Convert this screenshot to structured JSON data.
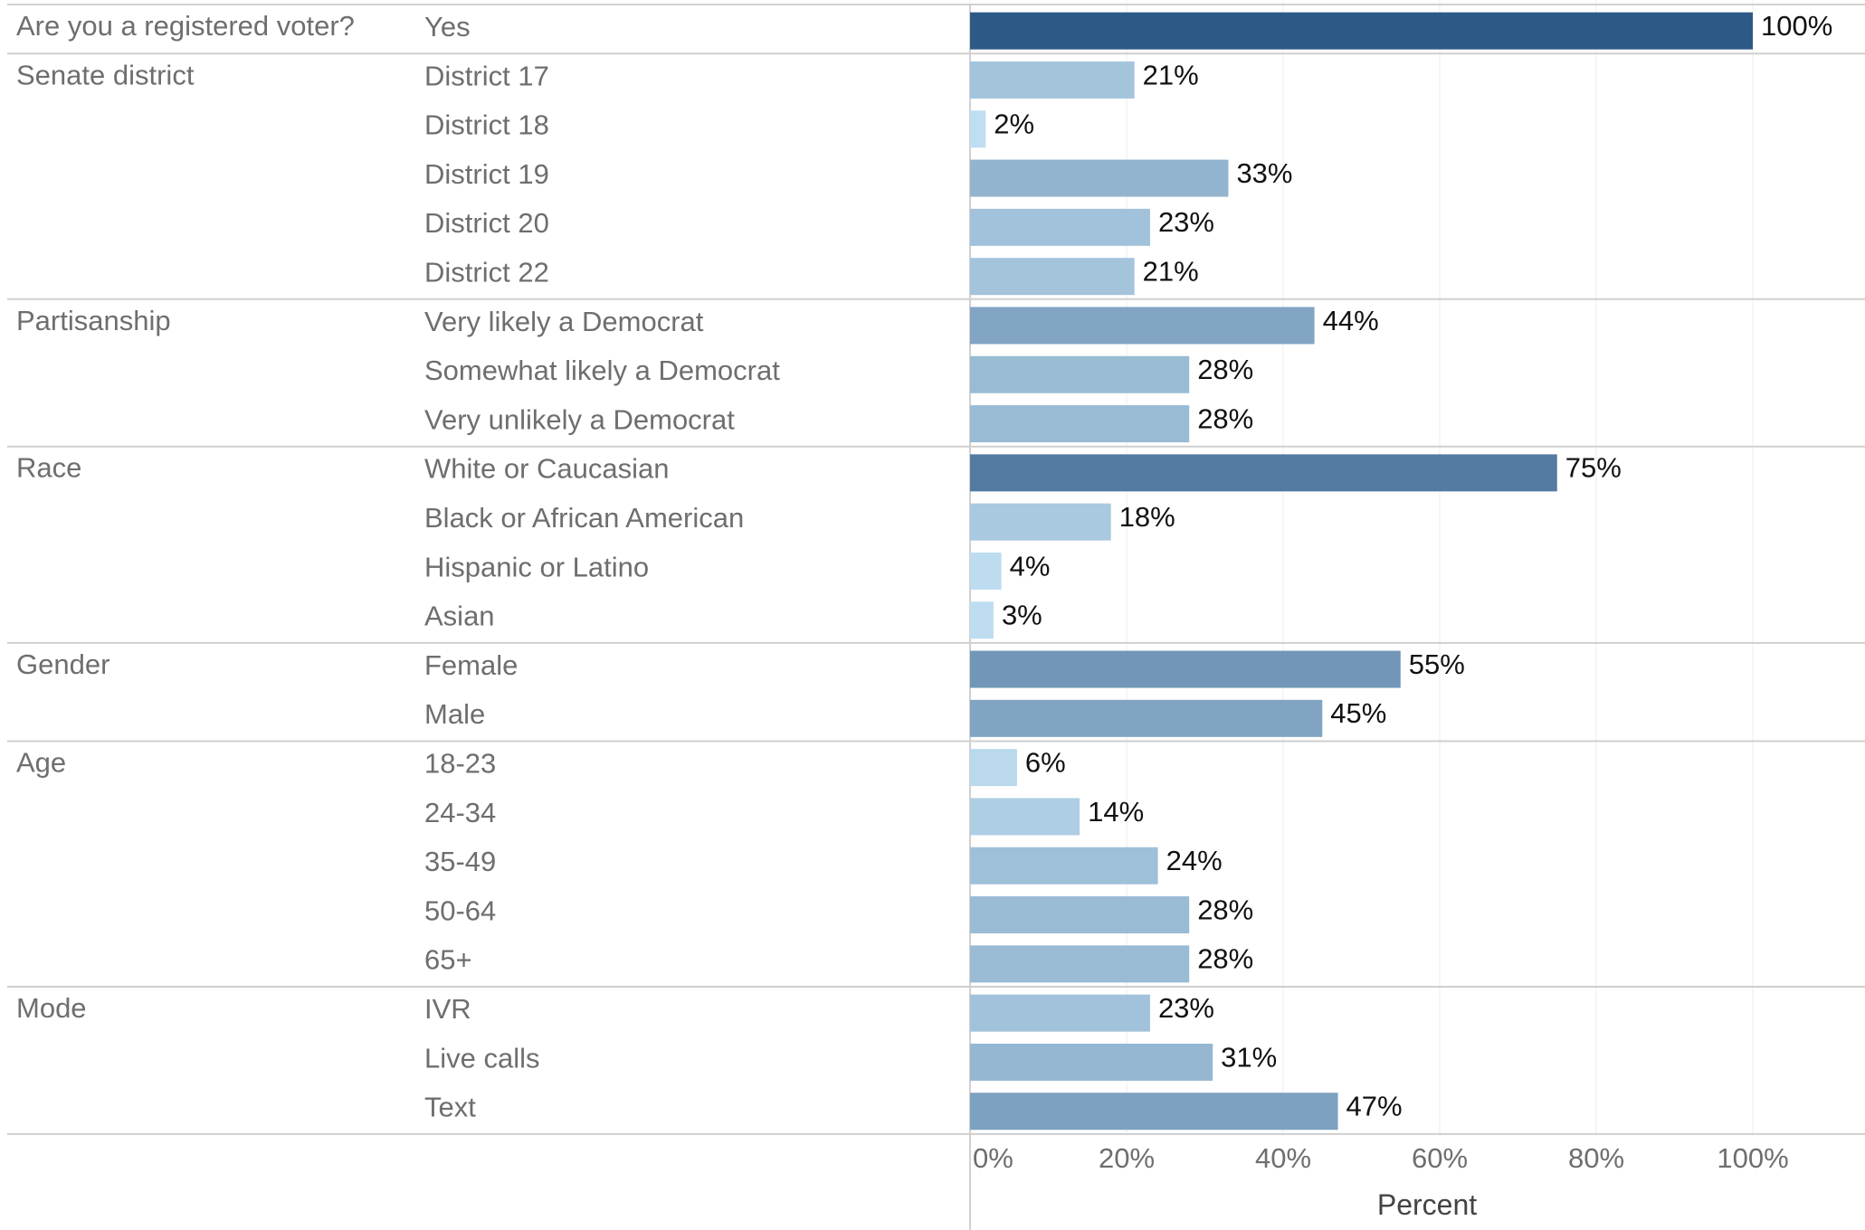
{
  "chart_data": {
    "type": "bar",
    "orientation": "horizontal",
    "xlabel": "Percent",
    "xlim": [
      0,
      100
    ],
    "xticks": [
      "0%",
      "20%",
      "40%",
      "60%",
      "80%",
      "100%"
    ],
    "grid": true,
    "groups": [
      {
        "name": "Are you a registered voter?",
        "rows": [
          {
            "category": "Yes",
            "value": 100,
            "label": "100%"
          }
        ]
      },
      {
        "name": "Senate district",
        "rows": [
          {
            "category": "District 17",
            "value": 21,
            "label": "21%"
          },
          {
            "category": "District 18",
            "value": 2,
            "label": "2%"
          },
          {
            "category": "District 19",
            "value": 33,
            "label": "33%"
          },
          {
            "category": "District 20",
            "value": 23,
            "label": "23%"
          },
          {
            "category": "District 22",
            "value": 21,
            "label": "21%"
          }
        ]
      },
      {
        "name": "Partisanship",
        "rows": [
          {
            "category": "Very likely a Democrat",
            "value": 44,
            "label": "44%"
          },
          {
            "category": "Somewhat likely a Democrat",
            "value": 28,
            "label": "28%"
          },
          {
            "category": "Very unlikely a Democrat",
            "value": 28,
            "label": "28%"
          }
        ]
      },
      {
        "name": "Race",
        "rows": [
          {
            "category": "White or Caucasian",
            "value": 75,
            "label": "75%"
          },
          {
            "category": "Black or African American",
            "value": 18,
            "label": "18%"
          },
          {
            "category": "Hispanic or Latino",
            "value": 4,
            "label": "4%"
          },
          {
            "category": "Asian",
            "value": 3,
            "label": "3%"
          }
        ]
      },
      {
        "name": "Gender",
        "rows": [
          {
            "category": "Female",
            "value": 55,
            "label": "55%"
          },
          {
            "category": "Male",
            "value": 45,
            "label": "45%"
          }
        ]
      },
      {
        "name": "Age",
        "rows": [
          {
            "category": "18-23",
            "value": 6,
            "label": "6%"
          },
          {
            "category": "24-34",
            "value": 14,
            "label": "14%"
          },
          {
            "category": "35-49",
            "value": 24,
            "label": "24%"
          },
          {
            "category": "50-64",
            "value": 28,
            "label": "28%"
          },
          {
            "category": "65+",
            "value": 28,
            "label": "28%"
          }
        ]
      },
      {
        "name": "Mode",
        "rows": [
          {
            "category": "IVR",
            "value": 23,
            "label": "23%"
          },
          {
            "category": "Live calls",
            "value": 31,
            "label": "31%"
          },
          {
            "category": "Text",
            "value": 47,
            "label": "47%"
          }
        ]
      }
    ],
    "color_scale": {
      "low": "#c3e1f3",
      "high": "#2d5986"
    }
  }
}
